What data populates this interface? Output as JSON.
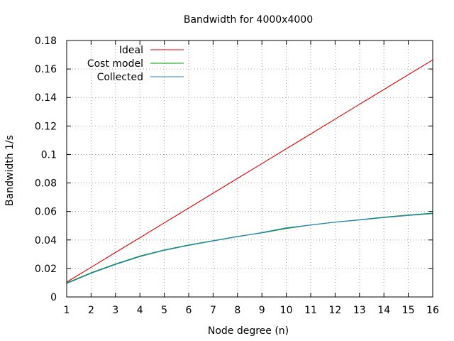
{
  "chart_data": {
    "type": "line",
    "title": "Bandwidth for 4000x4000",
    "xlabel": "Node degree (n)",
    "ylabel": "Bandwidth 1/s",
    "xlim": [
      1,
      16
    ],
    "ylim": [
      0,
      0.18
    ],
    "x_ticks": [
      "1",
      "2",
      "3",
      "4",
      "5",
      "6",
      "7",
      "8",
      "9",
      "10",
      "11",
      "12",
      "13",
      "14",
      "15",
      "16"
    ],
    "y_ticks": [
      "0",
      "0.02",
      "0.04",
      "0.06",
      "0.08",
      "0.1",
      "0.12",
      "0.14",
      "0.16",
      "0.18"
    ],
    "grid": true,
    "legend_position": "top-left",
    "x": [
      1,
      2,
      3,
      4,
      5,
      6,
      7,
      8,
      9,
      10,
      11,
      12,
      13,
      14,
      15,
      16
    ],
    "series": [
      {
        "name": "Ideal",
        "color": "#e00000",
        "values": [
          0.0104,
          0.0208,
          0.0312,
          0.0416,
          0.052,
          0.0624,
          0.0728,
          0.0832,
          0.0936,
          0.104,
          0.1144,
          0.1248,
          0.1352,
          0.1456,
          0.156,
          0.1664
        ]
      },
      {
        "name": "Cost model",
        "color": "#009e00",
        "values": [
          0.0098,
          0.017,
          0.0232,
          0.0287,
          0.033,
          0.0365,
          0.0395,
          0.0425,
          0.045,
          0.048,
          0.0505,
          0.0525,
          0.0542,
          0.056,
          0.0575,
          0.0588
        ]
      },
      {
        "name": "Collected",
        "color": "#2a7fd0",
        "values": [
          0.0094,
          0.0166,
          0.0228,
          0.0283,
          0.0327,
          0.0362,
          0.0393,
          0.0423,
          0.0452,
          0.0485,
          0.0505,
          0.0525,
          0.054,
          0.0557,
          0.0572,
          0.0585
        ]
      }
    ]
  }
}
